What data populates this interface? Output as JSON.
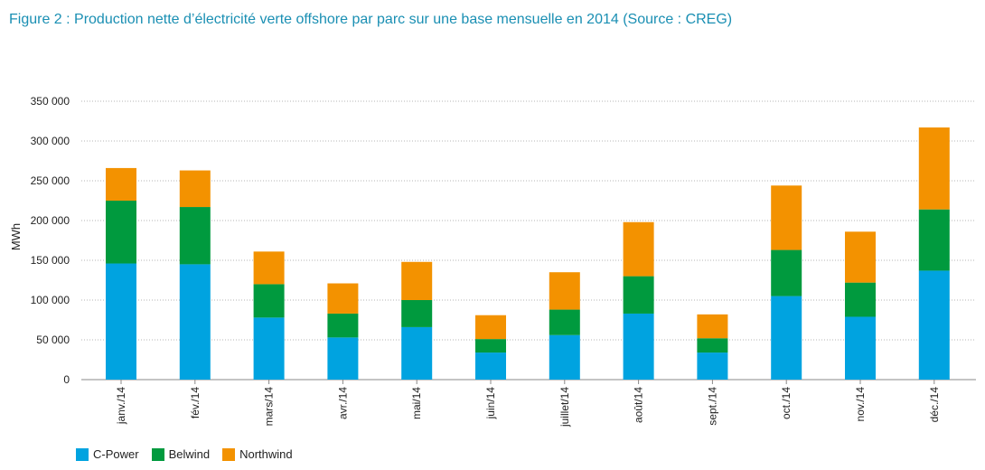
{
  "title": "Figure 2 : Production nette d’électricité verte offshore par parc sur une base mensuelle en 2014 (Source : CREG)",
  "chart_data": {
    "type": "bar",
    "stacked": true,
    "title": "Figure 2 : Production nette d’électricité verte offshore par parc sur une base mensuelle en 2014 (Source : CREG)",
    "xlabel": "",
    "ylabel": "MWh",
    "ylim": [
      0,
      350000
    ],
    "yticks": [
      0,
      50000,
      100000,
      150000,
      200000,
      250000,
      300000,
      350000
    ],
    "ytick_labels": [
      "0",
      "50 000",
      "100 000",
      "150 000",
      "200 000",
      "250 000",
      "300 000",
      "350 000"
    ],
    "grid": "horizontal dotted",
    "legend_position": "bottom-left",
    "categories": [
      "janv./14",
      "fév./14",
      "mars/14",
      "avr./14",
      "mai/14",
      "juin/14",
      "juillet/14",
      "août/14",
      "sept./14",
      "oct./14",
      "nov./14",
      "déc./14"
    ],
    "series": [
      {
        "name": "C-Power",
        "color": "#00a3e0",
        "values": [
          146000,
          145000,
          78000,
          53000,
          66000,
          34000,
          56000,
          83000,
          34000,
          105000,
          79000,
          137000
        ]
      },
      {
        "name": "Belwind",
        "color": "#009a3e",
        "values": [
          79000,
          72000,
          42000,
          30000,
          34000,
          17000,
          32000,
          47000,
          18000,
          58000,
          43000,
          77000
        ]
      },
      {
        "name": "Northwind",
        "color": "#f39200",
        "values": [
          41000,
          46000,
          41000,
          38000,
          48000,
          30000,
          47000,
          68000,
          30000,
          81000,
          64000,
          103000
        ]
      }
    ]
  }
}
